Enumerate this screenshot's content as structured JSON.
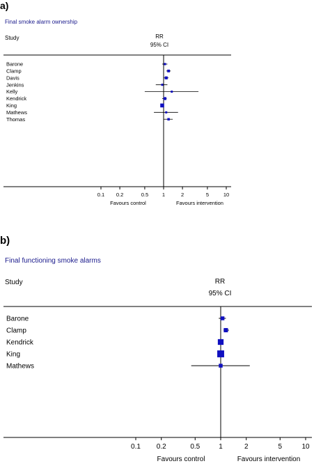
{
  "chart_data": [
    {
      "type": "forest",
      "panel": "a)",
      "title": "Final smoke alarm ownership",
      "study_header": "Study",
      "effect_header": "RR",
      "ci_header": "95% CI",
      "x_scale": "log",
      "xlim": [
        0.1,
        10
      ],
      "xticks": [
        "0.1",
        "0.2",
        "0.5",
        "1",
        "2",
        "5",
        "10"
      ],
      "xtick_values": [
        0.1,
        0.2,
        0.5,
        1,
        2,
        5,
        10
      ],
      "favours_left": "Favours control",
      "favours_right": "Favours intervention",
      "reference_line": 1,
      "studies": [
        {
          "name": "Barone",
          "rr": 1.05,
          "lo": 0.95,
          "hi": 1.15,
          "weight": 0.45
        },
        {
          "name": "Clamp",
          "rr": 1.2,
          "lo": 1.1,
          "hi": 1.3,
          "weight": 0.55
        },
        {
          "name": "Davis",
          "rr": 1.1,
          "lo": 1.0,
          "hi": 1.2,
          "weight": 0.6
        },
        {
          "name": "Jenkins",
          "rr": 0.95,
          "lo": 0.75,
          "hi": 1.15,
          "weight": 0.4
        },
        {
          "name": "Kelly",
          "rr": 1.35,
          "lo": 0.5,
          "hi": 3.6,
          "weight": 0.3
        },
        {
          "name": "Kendrick",
          "rr": 1.05,
          "lo": 0.95,
          "hi": 1.12,
          "weight": 0.6
        },
        {
          "name": "King",
          "rr": 0.95,
          "lo": 0.9,
          "hi": 1.0,
          "weight": 0.8
        },
        {
          "name": "Mathews",
          "rr": 1.1,
          "lo": 0.7,
          "hi": 1.7,
          "weight": 0.4
        },
        {
          "name": "Thomas",
          "rr": 1.2,
          "lo": 1.0,
          "hi": 1.4,
          "weight": 0.5
        }
      ]
    },
    {
      "type": "forest",
      "panel": "b)",
      "title": "Final functioning smoke alarms",
      "study_header": "Study",
      "effect_header": "RR",
      "ci_header": "95% CI",
      "x_scale": "log",
      "xlim": [
        0.1,
        10
      ],
      "xticks": [
        "0.1",
        "0.2",
        "0.5",
        "1",
        "2",
        "5",
        "10"
      ],
      "xtick_values": [
        0.1,
        0.2,
        0.5,
        1,
        2,
        5,
        10
      ],
      "favours_left": "Favours control",
      "favours_right": "Favours intervention",
      "reference_line": 1,
      "studies": [
        {
          "name": "Barone",
          "rr": 1.05,
          "lo": 0.95,
          "hi": 1.15,
          "weight": 0.5
        },
        {
          "name": "Clamp",
          "rr": 1.15,
          "lo": 1.08,
          "hi": 1.25,
          "weight": 0.55
        },
        {
          "name": "Kendrick",
          "rr": 1.0,
          "lo": 0.95,
          "hi": 1.07,
          "weight": 0.75
        },
        {
          "name": "King",
          "rr": 1.0,
          "lo": 0.94,
          "hi": 1.05,
          "weight": 0.9
        },
        {
          "name": "Mathews",
          "rr": 1.0,
          "lo": 0.45,
          "hi": 2.2,
          "weight": 0.5
        }
      ]
    }
  ],
  "colors": {
    "title": "#1a1a8c",
    "marker": "#1010c0",
    "line": "#000000"
  }
}
